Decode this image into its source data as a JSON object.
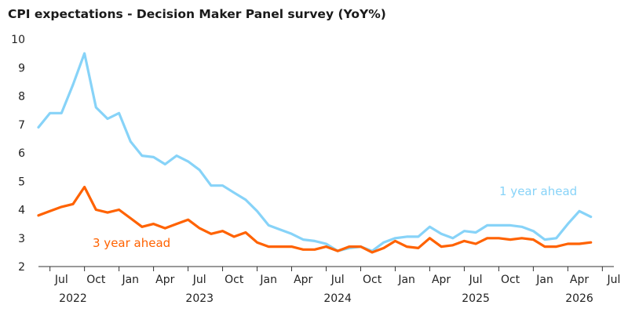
{
  "chart_data": {
    "type": "line",
    "title": "CPI expectations - Decision Maker Panel survey (YoY%)",
    "ylim": [
      2,
      10
    ],
    "yticks": [
      "2",
      "3",
      "4",
      "5",
      "6",
      "7",
      "8",
      "9",
      "10"
    ],
    "xlim": [
      "2022-05",
      "2026-07"
    ],
    "x_month_ticks": [
      {
        "date": "2022-07",
        "label": "Jul"
      },
      {
        "date": "2022-10",
        "label": "Oct"
      },
      {
        "date": "2023-01",
        "label": "Jan"
      },
      {
        "date": "2023-04",
        "label": "Apr"
      },
      {
        "date": "2023-07",
        "label": "Jul"
      },
      {
        "date": "2023-10",
        "label": "Oct"
      },
      {
        "date": "2024-01",
        "label": "Jan"
      },
      {
        "date": "2024-04",
        "label": "Apr"
      },
      {
        "date": "2024-07",
        "label": "Jul"
      },
      {
        "date": "2024-10",
        "label": "Oct"
      },
      {
        "date": "2025-01",
        "label": "Jan"
      },
      {
        "date": "2025-04",
        "label": "Apr"
      },
      {
        "date": "2025-07",
        "label": "Jul"
      },
      {
        "date": "2025-10",
        "label": "Oct"
      },
      {
        "date": "2026-01",
        "label": "Jan"
      },
      {
        "date": "2026-04",
        "label": "Apr"
      },
      {
        "date": "2026-07",
        "label": "Jul"
      }
    ],
    "x_year_labels": [
      {
        "date": "2022-08",
        "label": "2022"
      },
      {
        "date": "2023-07",
        "label": "2023"
      },
      {
        "date": "2024-07",
        "label": "2024"
      },
      {
        "date": "2025-07",
        "label": "2025"
      },
      {
        "date": "2026-04",
        "label": "2026"
      }
    ],
    "grid": false,
    "series": [
      {
        "name": "1 year ahead",
        "color": "#87d3f8",
        "x": [
          "2022-05",
          "2022-06",
          "2022-07",
          "2022-08",
          "2022-09",
          "2022-10",
          "2022-11",
          "2022-12",
          "2023-01",
          "2023-02",
          "2023-03",
          "2023-04",
          "2023-05",
          "2023-06",
          "2023-07",
          "2023-08",
          "2023-09",
          "2023-10",
          "2023-11",
          "2023-12",
          "2024-01",
          "2024-02",
          "2024-03",
          "2024-04",
          "2024-05",
          "2024-06",
          "2024-07",
          "2024-08",
          "2024-09",
          "2024-10",
          "2024-11",
          "2024-12",
          "2025-01",
          "2025-02",
          "2025-03",
          "2025-04",
          "2025-05",
          "2025-06",
          "2025-07",
          "2025-08",
          "2025-09",
          "2025-10",
          "2025-11",
          "2025-12",
          "2026-01",
          "2026-02",
          "2026-03",
          "2026-04",
          "2026-05"
        ],
        "values": [
          6.9,
          7.4,
          7.4,
          8.4,
          9.5,
          7.6,
          7.2,
          7.4,
          6.4,
          5.9,
          5.85,
          5.6,
          5.9,
          5.7,
          5.4,
          4.85,
          4.85,
          4.6,
          4.35,
          3.95,
          3.45,
          3.3,
          3.15,
          2.95,
          2.9,
          2.8,
          2.55,
          2.65,
          2.7,
          2.55,
          2.85,
          3.0,
          3.05,
          3.05,
          3.4,
          3.15,
          3.0,
          3.25,
          3.2,
          3.45,
          3.45,
          3.45,
          3.4,
          3.25,
          2.95,
          3.0,
          3.5,
          3.95,
          3.75
        ]
      },
      {
        "name": "3 year ahead",
        "color": "#ff6200",
        "x": [
          "2022-05",
          "2022-06",
          "2022-07",
          "2022-08",
          "2022-09",
          "2022-10",
          "2022-11",
          "2022-12",
          "2023-01",
          "2023-02",
          "2023-03",
          "2023-04",
          "2023-05",
          "2023-06",
          "2023-07",
          "2023-08",
          "2023-09",
          "2023-10",
          "2023-11",
          "2023-12",
          "2024-01",
          "2024-02",
          "2024-03",
          "2024-04",
          "2024-05",
          "2024-06",
          "2024-07",
          "2024-08",
          "2024-09",
          "2024-10",
          "2024-11",
          "2024-12",
          "2025-01",
          "2025-02",
          "2025-03",
          "2025-04",
          "2025-05",
          "2025-06",
          "2025-07",
          "2025-08",
          "2025-09",
          "2025-10",
          "2025-11",
          "2025-12",
          "2026-01",
          "2026-02",
          "2026-03",
          "2026-04",
          "2026-05"
        ],
        "values": [
          3.8,
          3.95,
          4.1,
          4.2,
          4.8,
          4.0,
          3.9,
          4.0,
          3.7,
          3.4,
          3.5,
          3.35,
          3.5,
          3.65,
          3.35,
          3.15,
          3.25,
          3.05,
          3.2,
          2.85,
          2.7,
          2.7,
          2.7,
          2.6,
          2.6,
          2.7,
          2.55,
          2.7,
          2.7,
          2.5,
          2.65,
          2.9,
          2.7,
          2.65,
          3.0,
          2.7,
          2.75,
          2.9,
          2.8,
          3.0,
          3.0,
          2.95,
          3.0,
          2.95,
          2.7,
          2.7,
          2.8,
          2.8,
          2.85
        ]
      }
    ],
    "annotations": [
      {
        "text": "1 year ahead",
        "series": "1 year ahead",
        "color": "#87d3f8"
      },
      {
        "text": "3 year ahead",
        "series": "3 year ahead",
        "color": "#ff6200"
      }
    ]
  }
}
